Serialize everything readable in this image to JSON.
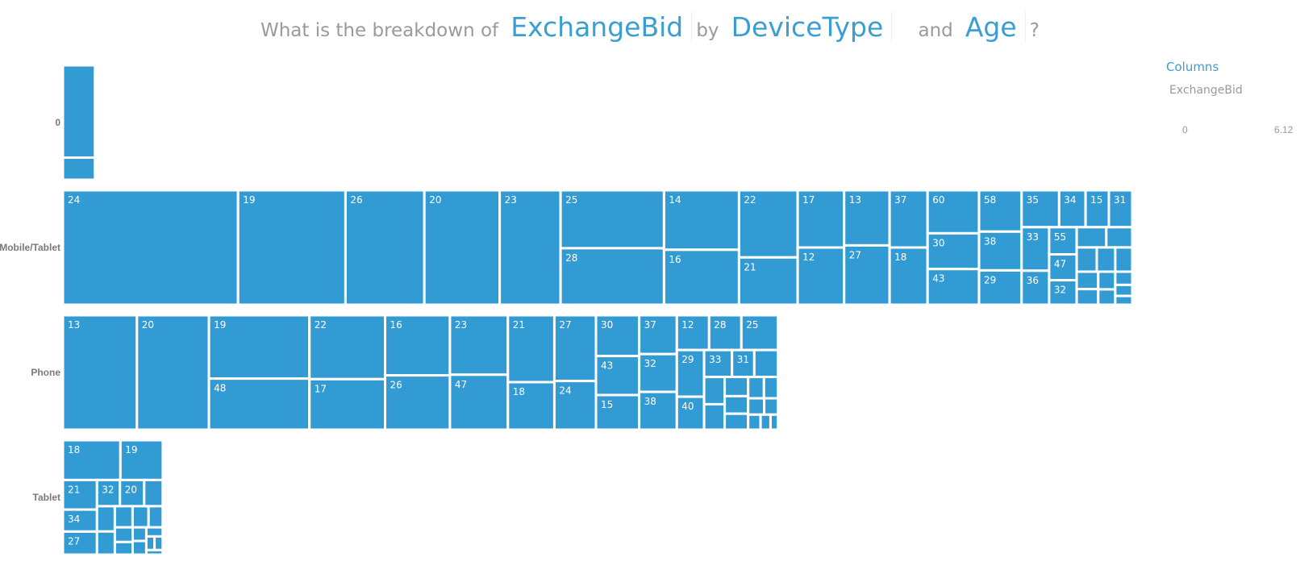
{
  "question": {
    "prefix": "What is the breakdown of",
    "measure": "ExchangeBid",
    "by": "by",
    "dim1": "DeviceType",
    "and": "and",
    "dim2": "Age",
    "suffix": "?"
  },
  "legend": {
    "title": "Columns",
    "field": "ExchangeBid",
    "min": "0",
    "max": "6.12"
  },
  "colors": {
    "cell": "#339bd3",
    "accent": "#3a9fd0",
    "text_muted": "#9a9a9a"
  },
  "chart_data": {
    "type": "treemap",
    "measure": "ExchangeBid",
    "row_dimension": "DeviceType",
    "cell_dimension": "Age",
    "legend_position": "top-right",
    "rows": [
      {
        "label": "0",
        "cells": [
          {
            "label": "",
            "value": 0.79
          },
          {
            "label": "",
            "value": 0.19
          }
        ]
      },
      {
        "label": "Mobile/Tablet",
        "cells": [
          {
            "label": "24",
            "value": 5.35
          },
          {
            "label": "19",
            "value": 3.28
          },
          {
            "label": "26",
            "value": 2.41
          },
          {
            "label": "20",
            "value": 2.3
          },
          {
            "label": "23",
            "value": 1.86
          },
          {
            "label": "25",
            "value": 1.6
          },
          {
            "label": "28",
            "value": 1.56
          },
          {
            "label": "14",
            "value": 1.19
          },
          {
            "label": "16",
            "value": 1.1
          },
          {
            "label": "22",
            "value": 1.05
          },
          {
            "label": "21",
            "value": 0.74
          },
          {
            "label": "17",
            "value": 0.71
          },
          {
            "label": "12",
            "value": 0.71
          },
          {
            "label": "13",
            "value": 0.67
          },
          {
            "label": "27",
            "value": 0.72
          },
          {
            "label": "37",
            "value": 0.58
          },
          {
            "label": "18",
            "value": 0.58
          },
          {
            "label": "60",
            "value": 0.59
          },
          {
            "label": "30",
            "value": 0.49
          },
          {
            "label": "43",
            "value": 0.49
          },
          {
            "label": "58",
            "value": 0.47
          },
          {
            "label": "38",
            "value": 0.44
          },
          {
            "label": "29",
            "value": 0.39
          },
          {
            "label": "35",
            "value": 0.37
          },
          {
            "label": "34",
            "value": 0.26
          },
          {
            "label": "15",
            "value": 0.23
          },
          {
            "label": "31",
            "value": 0.23
          },
          {
            "label": "33",
            "value": 0.32
          },
          {
            "label": "36",
            "value": 0.25
          },
          {
            "label": "55",
            "value": 0.2
          },
          {
            "label": "47",
            "value": 0.19
          },
          {
            "label": "32",
            "value": 0.18
          },
          {
            "label": "",
            "value": 0.16
          },
          {
            "label": "",
            "value": 0.14
          },
          {
            "label": "",
            "value": 0.13
          },
          {
            "label": "",
            "value": 0.12
          },
          {
            "label": "",
            "value": 0.11
          },
          {
            "label": "",
            "value": 0.1
          },
          {
            "label": "",
            "value": 0.09
          },
          {
            "label": "",
            "value": 0.08
          },
          {
            "label": "",
            "value": 0.07
          },
          {
            "label": "",
            "value": 0.06
          },
          {
            "label": "",
            "value": 0.05
          },
          {
            "label": "",
            "value": 0.04
          }
        ]
      },
      {
        "label": "Phone",
        "cells": [
          {
            "label": "13",
            "value": 2.26
          },
          {
            "label": "20",
            "value": 2.2
          },
          {
            "label": "19",
            "value": 1.7
          },
          {
            "label": "48",
            "value": 1.37
          },
          {
            "label": "22",
            "value": 1.29
          },
          {
            "label": "17",
            "value": 1.02
          },
          {
            "label": "16",
            "value": 1.04
          },
          {
            "label": "26",
            "value": 0.94
          },
          {
            "label": "23",
            "value": 0.92
          },
          {
            "label": "47",
            "value": 0.85
          },
          {
            "label": "21",
            "value": 0.83
          },
          {
            "label": "18",
            "value": 0.59
          },
          {
            "label": "27",
            "value": 0.73
          },
          {
            "label": "24",
            "value": 0.54
          },
          {
            "label": "30",
            "value": 0.47
          },
          {
            "label": "43",
            "value": 0.45
          },
          {
            "label": "15",
            "value": 0.4
          },
          {
            "label": "37",
            "value": 0.39
          },
          {
            "label": "32",
            "value": 0.38
          },
          {
            "label": "38",
            "value": 0.38
          },
          {
            "label": "12",
            "value": 0.3
          },
          {
            "label": "28",
            "value": 0.3
          },
          {
            "label": "25",
            "value": 0.34
          },
          {
            "label": "29",
            "value": 0.34
          },
          {
            "label": "40",
            "value": 0.24
          },
          {
            "label": "33",
            "value": 0.2
          },
          {
            "label": "31",
            "value": 0.16
          },
          {
            "label": "",
            "value": 0.17
          },
          {
            "label": "",
            "value": 0.15
          },
          {
            "label": "",
            "value": 0.14
          },
          {
            "label": "",
            "value": 0.12
          },
          {
            "label": "",
            "value": 0.11
          },
          {
            "label": "",
            "value": 0.1
          },
          {
            "label": "",
            "value": 0.09
          },
          {
            "label": "",
            "value": 0.08
          },
          {
            "label": "",
            "value": 0.07
          },
          {
            "label": "",
            "value": 0.06
          },
          {
            "label": "",
            "value": 0.05
          },
          {
            "label": "",
            "value": 0.04
          },
          {
            "label": "",
            "value": 0.03
          }
        ]
      },
      {
        "label": "Tablet",
        "cells": [
          {
            "label": "18",
            "value": 0.61
          },
          {
            "label": "19",
            "value": 0.45
          },
          {
            "label": "21",
            "value": 0.27
          },
          {
            "label": "34",
            "value": 0.2
          },
          {
            "label": "27",
            "value": 0.21
          },
          {
            "label": "32",
            "value": 0.16
          },
          {
            "label": "20",
            "value": 0.17
          },
          {
            "label": "",
            "value": 0.13
          },
          {
            "label": "",
            "value": 0.12
          },
          {
            "label": "",
            "value": 0.11
          },
          {
            "label": "",
            "value": 0.1
          },
          {
            "label": "",
            "value": 0.09
          },
          {
            "label": "",
            "value": 0.08
          },
          {
            "label": "",
            "value": 0.07
          },
          {
            "label": "",
            "value": 0.06
          },
          {
            "label": "",
            "value": 0.05
          },
          {
            "label": "",
            "value": 0.05
          },
          {
            "label": "",
            "value": 0.04
          },
          {
            "label": "",
            "value": 0.03
          },
          {
            "label": "",
            "value": 0.03
          },
          {
            "label": "",
            "value": 0.02
          }
        ]
      }
    ]
  }
}
